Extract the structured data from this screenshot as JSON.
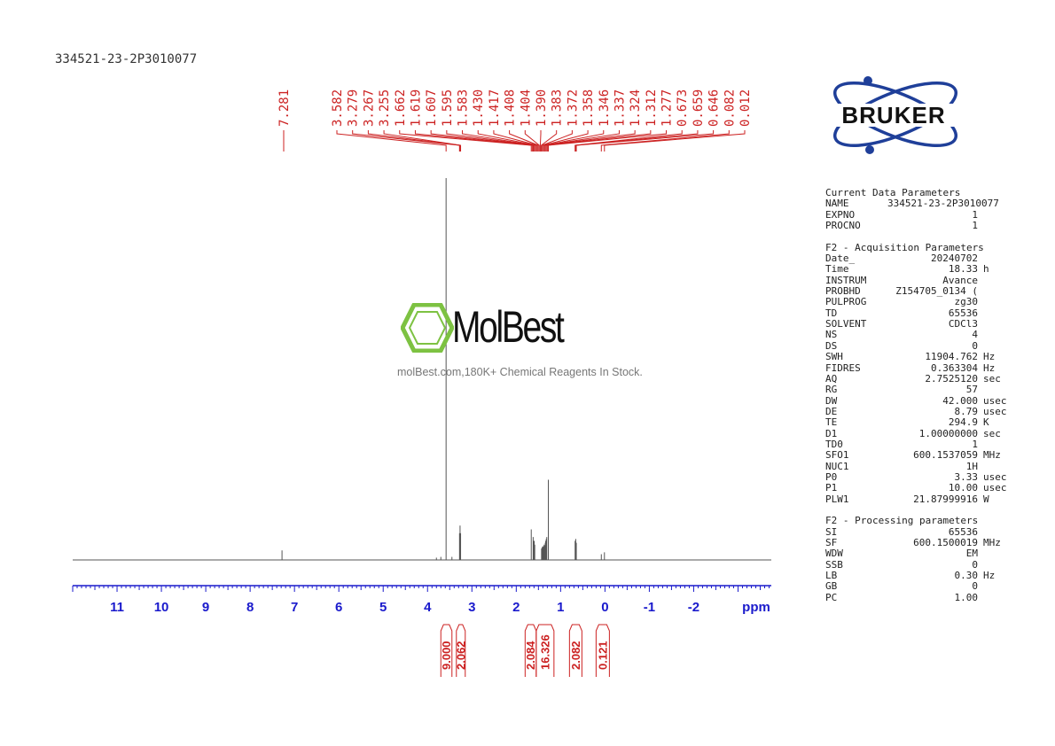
{
  "sample_id": "334521-23-2P3010077",
  "watermark": {
    "brand": "MolBest",
    "tagline": "molBest.com,180K+ Chemical Reagents In Stock."
  },
  "logo": {
    "text": "BRUKER"
  },
  "colors": {
    "peak_labels": "#cc2222",
    "axis": "#1a1acc",
    "spectrum": "#555555",
    "watermark_green": "#7dc242",
    "bruker_blue": "#1f3f99"
  },
  "parameters": [
    {
      "title": "Current Data Parameters",
      "rows": [
        {
          "key": "NAME",
          "value": "334521-23-2P3010077",
          "unit": ""
        },
        {
          "key": "EXPNO",
          "value": "1",
          "unit": ""
        },
        {
          "key": "PROCNO",
          "value": "1",
          "unit": ""
        }
      ]
    },
    {
      "title": "F2 - Acquisition Parameters",
      "rows": [
        {
          "key": "Date_",
          "value": "20240702",
          "unit": ""
        },
        {
          "key": "Time",
          "value": "18.33",
          "unit": "h"
        },
        {
          "key": "INSTRUM",
          "value": "Avance",
          "unit": ""
        },
        {
          "key": "PROBHD",
          "value": "Z154705_0134 (",
          "unit": ""
        },
        {
          "key": "PULPROG",
          "value": "zg30",
          "unit": ""
        },
        {
          "key": "TD",
          "value": "65536",
          "unit": ""
        },
        {
          "key": "SOLVENT",
          "value": "CDCl3",
          "unit": ""
        },
        {
          "key": "NS",
          "value": "4",
          "unit": ""
        },
        {
          "key": "DS",
          "value": "0",
          "unit": ""
        },
        {
          "key": "SWH",
          "value": "11904.762",
          "unit": "Hz"
        },
        {
          "key": "FIDRES",
          "value": "0.363304",
          "unit": "Hz"
        },
        {
          "key": "AQ",
          "value": "2.7525120",
          "unit": "sec"
        },
        {
          "key": "RG",
          "value": "57",
          "unit": ""
        },
        {
          "key": "DW",
          "value": "42.000",
          "unit": "usec"
        },
        {
          "key": "DE",
          "value": "8.79",
          "unit": "usec"
        },
        {
          "key": "TE",
          "value": "294.9",
          "unit": "K"
        },
        {
          "key": "D1",
          "value": "1.00000000",
          "unit": "sec"
        },
        {
          "key": "TD0",
          "value": "1",
          "unit": ""
        },
        {
          "key": "SFO1",
          "value": "600.1537059",
          "unit": "MHz"
        },
        {
          "key": "NUC1",
          "value": "1H",
          "unit": ""
        },
        {
          "key": "P0",
          "value": "3.33",
          "unit": "usec"
        },
        {
          "key": "P1",
          "value": "10.00",
          "unit": "usec"
        },
        {
          "key": "PLW1",
          "value": "21.87999916",
          "unit": "W"
        }
      ]
    },
    {
      "title": "F2 - Processing parameters",
      "rows": [
        {
          "key": "SI",
          "value": "65536",
          "unit": ""
        },
        {
          "key": "SF",
          "value": "600.1500019",
          "unit": "MHz"
        },
        {
          "key": "WDW",
          "value": "EM",
          "unit": ""
        },
        {
          "key": "SSB",
          "value": "0",
          "unit": ""
        },
        {
          "key": "LB",
          "value": "0.30",
          "unit": "Hz"
        },
        {
          "key": "GB",
          "value": "0",
          "unit": ""
        },
        {
          "key": "PC",
          "value": "1.00",
          "unit": ""
        }
      ]
    }
  ],
  "chart_data": {
    "type": "line",
    "title": "",
    "xlabel": "ppm",
    "ylabel": "",
    "xlim": [
      12.0,
      -3.75
    ],
    "x_direction": "reversed",
    "x_ticks": [
      "11",
      "10",
      "9",
      "8",
      "7",
      "6",
      "5",
      "4",
      "3",
      "2",
      "1",
      "0",
      "-1",
      "-2"
    ],
    "x_ticks_values": [
      11,
      10,
      9,
      8,
      7,
      6,
      5,
      4,
      3,
      2,
      1,
      0,
      -1,
      -2
    ],
    "grid": false,
    "peak_labels": [
      "7.281",
      "3.582",
      "3.279",
      "3.267",
      "3.255",
      "1.662",
      "1.619",
      "1.607",
      "1.595",
      "1.583",
      "1.430",
      "1.417",
      "1.408",
      "1.404",
      "1.390",
      "1.383",
      "1.372",
      "1.358",
      "1.346",
      "1.337",
      "1.324",
      "1.312",
      "1.277",
      "0.673",
      "0.659",
      "0.646",
      "0.082",
      "0.012"
    ],
    "peaks": [
      {
        "ppm": 7.281,
        "height": 0.025
      },
      {
        "ppm": 3.8,
        "height": 0.006
      },
      {
        "ppm": 3.7,
        "height": 0.008
      },
      {
        "ppm": 3.582,
        "height": 1.0
      },
      {
        "ppm": 3.45,
        "height": 0.008
      },
      {
        "ppm": 3.279,
        "height": 0.07
      },
      {
        "ppm": 3.267,
        "height": 0.09
      },
      {
        "ppm": 3.255,
        "height": 0.07
      },
      {
        "ppm": 1.662,
        "height": 0.08
      },
      {
        "ppm": 1.619,
        "height": 0.06
      },
      {
        "ppm": 1.607,
        "height": 0.05
      },
      {
        "ppm": 1.595,
        "height": 0.05
      },
      {
        "ppm": 1.583,
        "height": 0.04
      },
      {
        "ppm": 1.43,
        "height": 0.03
      },
      {
        "ppm": 1.417,
        "height": 0.032
      },
      {
        "ppm": 1.408,
        "height": 0.035
      },
      {
        "ppm": 1.404,
        "height": 0.033
      },
      {
        "ppm": 1.39,
        "height": 0.036
      },
      {
        "ppm": 1.383,
        "height": 0.034
      },
      {
        "ppm": 1.372,
        "height": 0.04
      },
      {
        "ppm": 1.358,
        "height": 0.038
      },
      {
        "ppm": 1.346,
        "height": 0.045
      },
      {
        "ppm": 1.337,
        "height": 0.05
      },
      {
        "ppm": 1.324,
        "height": 0.055
      },
      {
        "ppm": 1.312,
        "height": 0.06
      },
      {
        "ppm": 1.277,
        "height": 0.21
      },
      {
        "ppm": 0.673,
        "height": 0.05
      },
      {
        "ppm": 0.659,
        "height": 0.055
      },
      {
        "ppm": 0.646,
        "height": 0.045
      },
      {
        "ppm": 0.082,
        "height": 0.015
      },
      {
        "ppm": 0.012,
        "height": 0.02
      }
    ],
    "peak_groups": [
      {
        "labels": [
          0,
          0
        ],
        "ppm_range": [
          7.281,
          7.281
        ]
      },
      {
        "labels": [
          1,
          1
        ],
        "ppm_range": [
          3.582,
          3.582
        ]
      },
      {
        "labels": [
          2,
          4
        ],
        "ppm_range": [
          3.279,
          3.255
        ]
      },
      {
        "labels": [
          5,
          22
        ],
        "ppm_range": [
          1.662,
          1.277
        ]
      },
      {
        "labels": [
          23,
          25
        ],
        "ppm_range": [
          0.673,
          0.646
        ]
      },
      {
        "labels": [
          26,
          27
        ],
        "ppm_range": [
          0.082,
          0.012
        ]
      }
    ],
    "integrals": [
      {
        "value": "9.000",
        "from": 3.7,
        "to": 3.45
      },
      {
        "value": "2.062",
        "from": 3.35,
        "to": 3.15
      },
      {
        "value": "2.084",
        "from": 1.8,
        "to": 1.55
      },
      {
        "value": "16.326",
        "from": 1.55,
        "to": 1.15
      },
      {
        "value": "2.082",
        "from": 0.8,
        "to": 0.52
      },
      {
        "value": "0.121",
        "from": 0.2,
        "to": -0.1
      }
    ]
  }
}
